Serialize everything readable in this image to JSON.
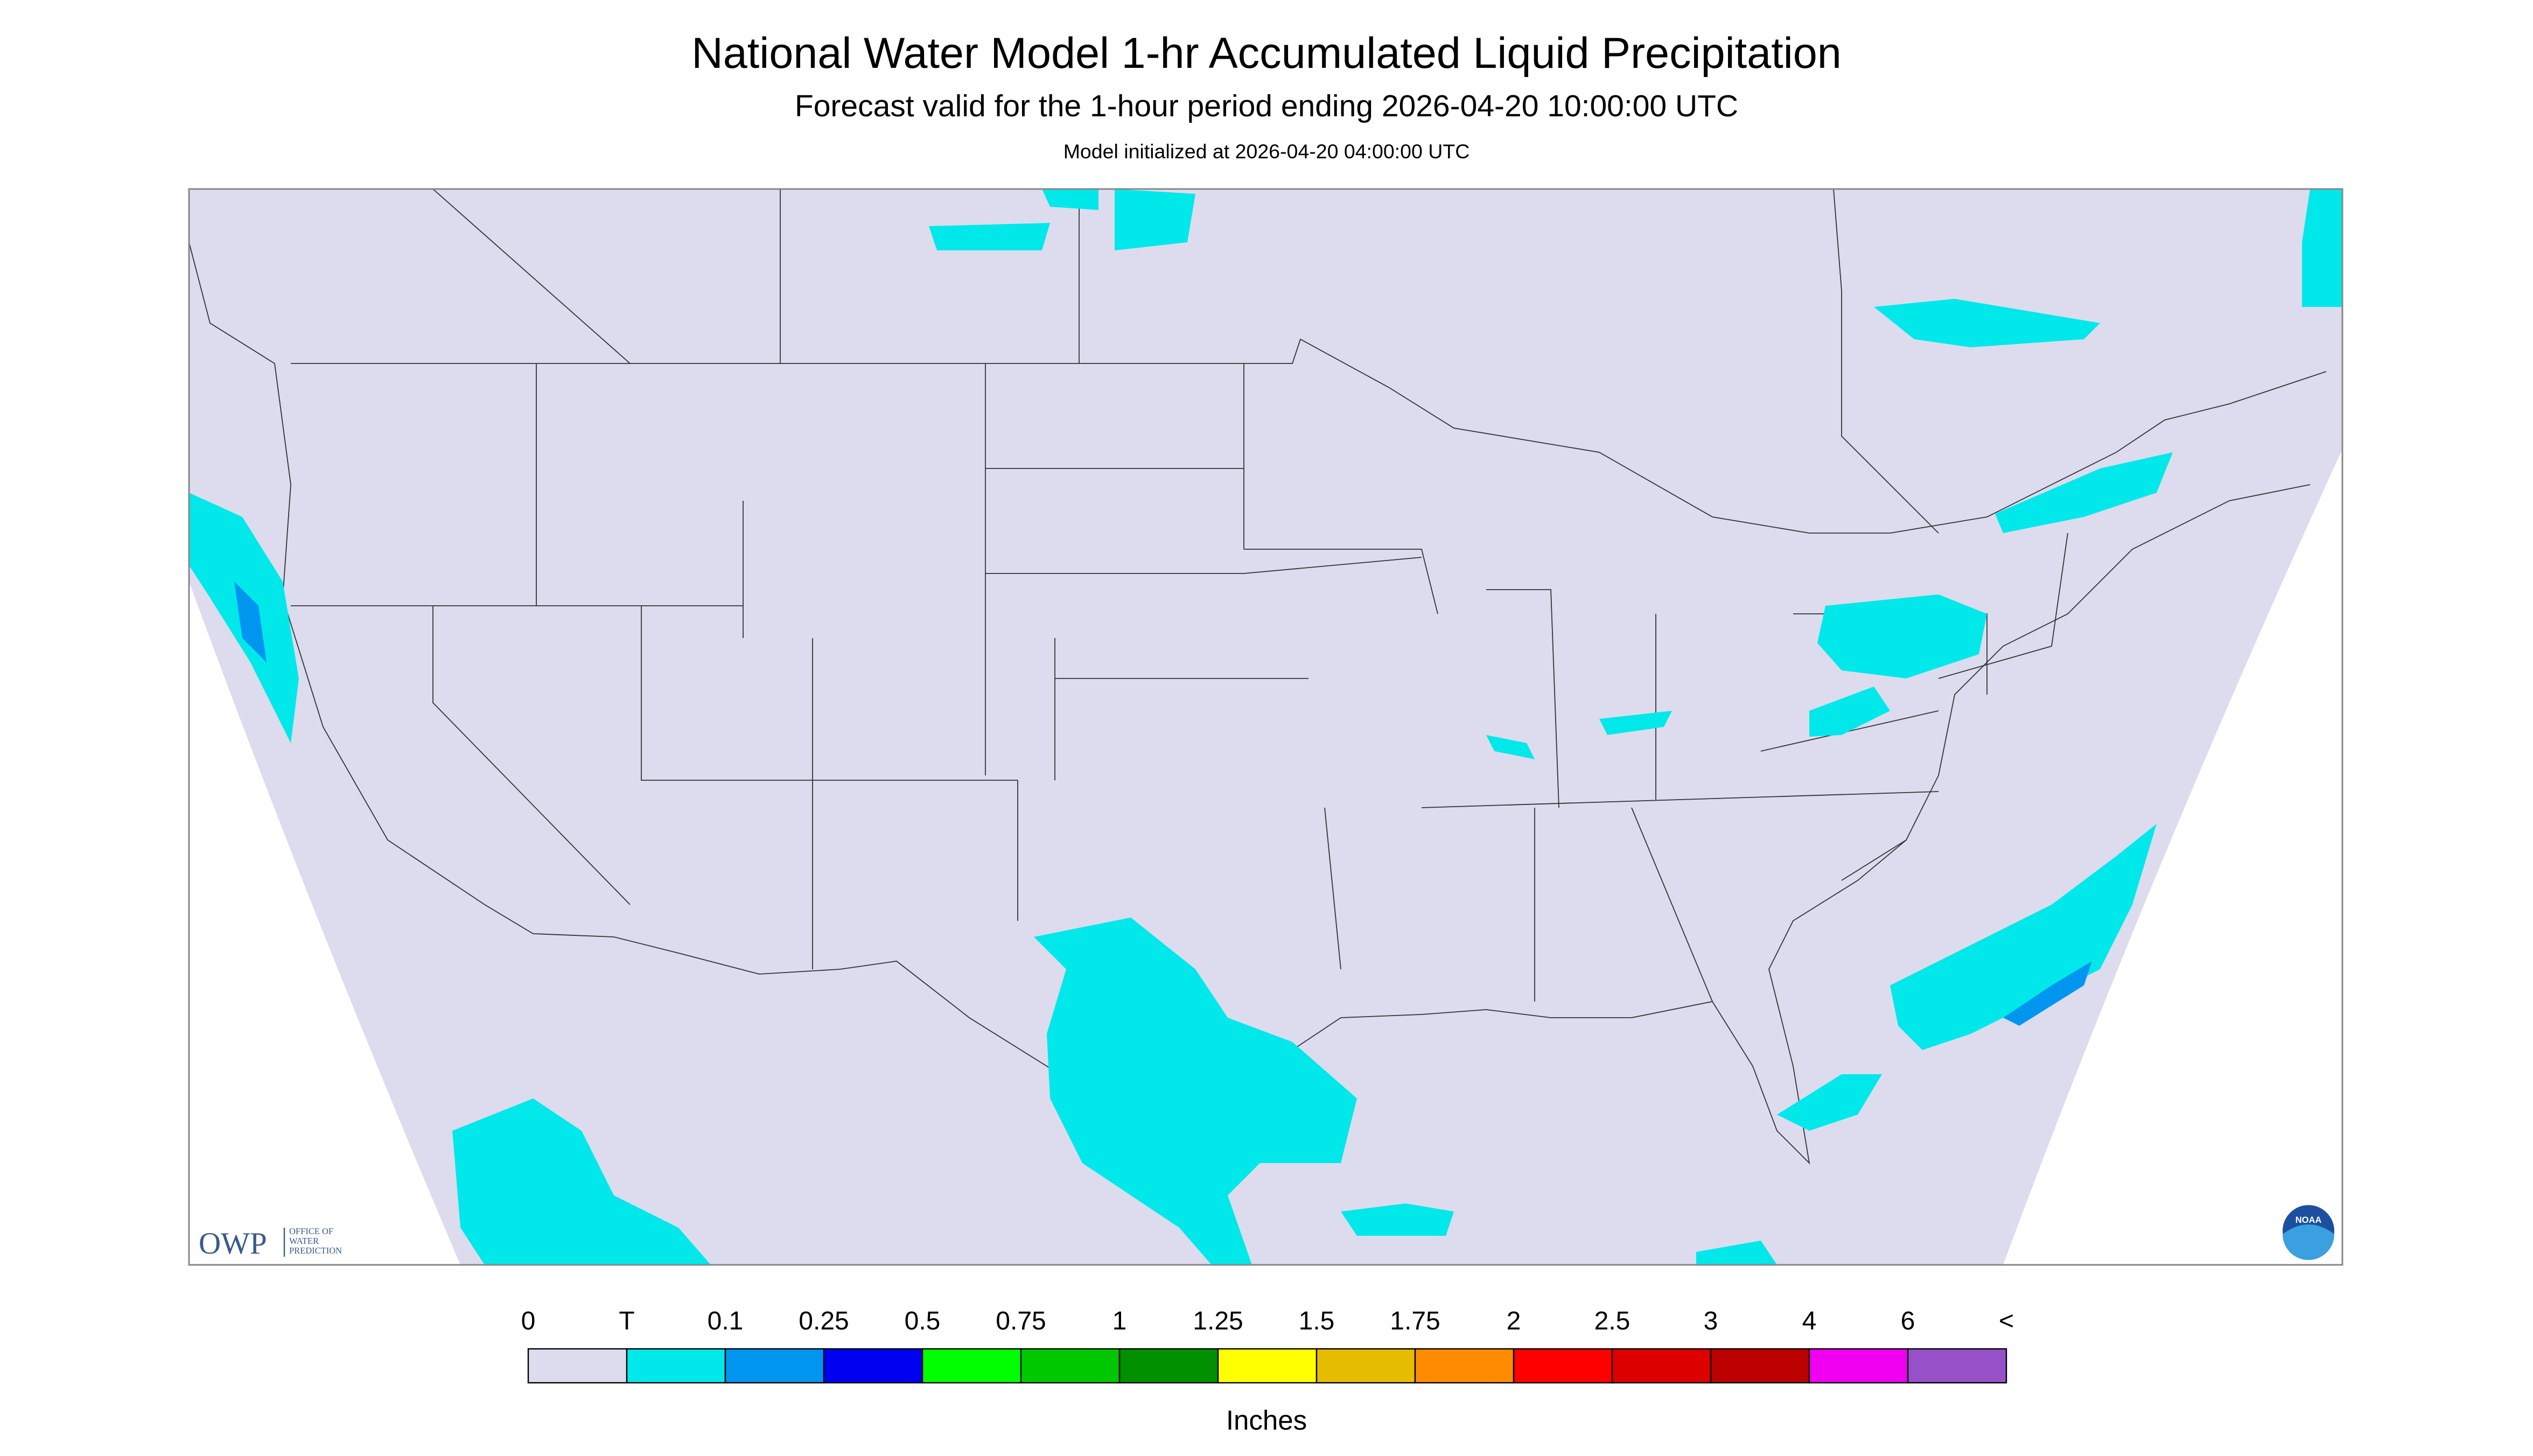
{
  "header": {
    "title": "National Water Model 1-hr Accumulated Liquid Precipitation",
    "subtitle": "Forecast valid for the 1-hour period ending 2026-04-20 10:00:00 UTC",
    "init": "Model initialized at 2026-04-20 04:00:00 UTC"
  },
  "legend": {
    "labels": [
      "0",
      "T",
      "0.1",
      "0.25",
      "0.5",
      "0.75",
      "1",
      "1.25",
      "1.5",
      "1.75",
      "2",
      "2.5",
      "3",
      "4",
      "6",
      "<"
    ],
    "colors": [
      "#dcdcee",
      "#00e8ea",
      "#0096f0",
      "#0000f0",
      "#00ff00",
      "#00c800",
      "#009000",
      "#ffff00",
      "#e6bc00",
      "#ff8c00",
      "#ff0000",
      "#dc0000",
      "#bc0000",
      "#f000f0",
      "#9650c8"
    ],
    "units": "Inches"
  },
  "logos": {
    "owp": "OWP",
    "owp_sub": [
      "OFFICE OF",
      "WATER",
      "PREDICTION"
    ],
    "noaa": "NOAA"
  }
}
